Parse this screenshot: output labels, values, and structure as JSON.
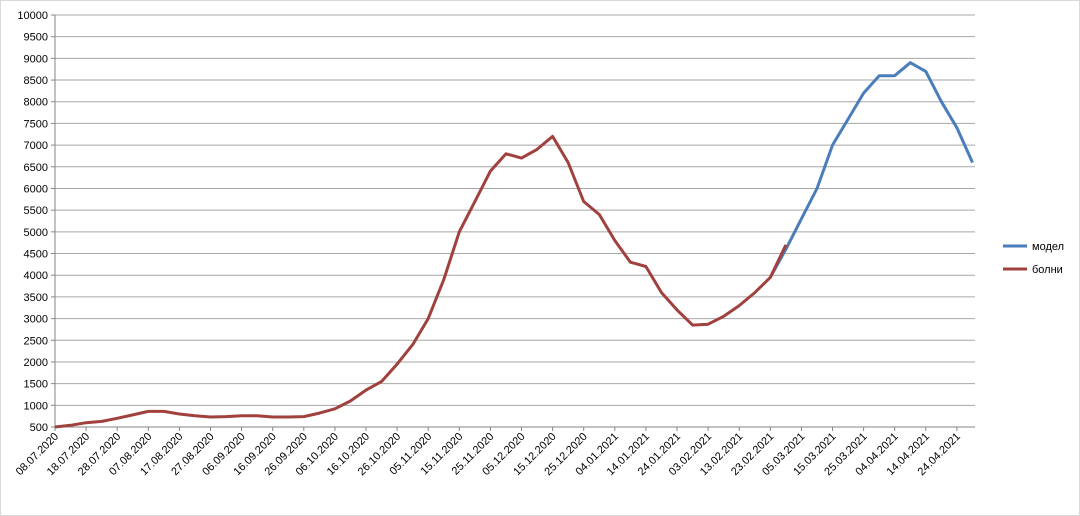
{
  "chart_data": {
    "type": "line",
    "categories": [
      "08.07.2020",
      null,
      "18.07.2020",
      null,
      "28.07.2020",
      null,
      "07.08.2020",
      null,
      "17.08.2020",
      null,
      "27.08.2020",
      null,
      "06.09.2020",
      null,
      "16.09.2020",
      null,
      "26.09.2020",
      null,
      "06.10.2020",
      null,
      "16.10.2020",
      null,
      "26.10.2020",
      null,
      "05.11.2020",
      null,
      "15.11.2020",
      null,
      "25.11.2020",
      null,
      "05.12.2020",
      null,
      "15.12.2020",
      null,
      "25.12.2020",
      null,
      "04.01.2021",
      null,
      "14.01.2021",
      null,
      "24.01.2021",
      null,
      "03.02.2021",
      null,
      "13.02.2021",
      null,
      "23.02.2021",
      null,
      "05.03.2021",
      null,
      "15.03.2021",
      null,
      "25.03.2021",
      null,
      "04.04.2021",
      null,
      "14.04.2021",
      null,
      "24.04.2021",
      null
    ],
    "series": [
      {
        "name": "модел",
        "color": "#4a7ebb",
        "values": [
          null,
          null,
          null,
          null,
          null,
          null,
          null,
          null,
          null,
          null,
          null,
          null,
          null,
          null,
          null,
          null,
          null,
          null,
          null,
          null,
          null,
          null,
          null,
          null,
          null,
          null,
          null,
          null,
          null,
          null,
          null,
          null,
          null,
          null,
          null,
          null,
          null,
          null,
          null,
          null,
          null,
          null,
          null,
          null,
          null,
          null,
          3950,
          4600,
          5300,
          6000,
          7000,
          7600,
          8200,
          8600,
          8600,
          8900,
          8700,
          8000,
          7400,
          6600
        ]
      },
      {
        "name": "болни",
        "color": "#a0413d",
        "values": [
          500,
          540,
          600,
          630,
          700,
          780,
          860,
          860,
          800,
          760,
          730,
          740,
          760,
          760,
          730,
          730,
          740,
          820,
          920,
          1100,
          1350,
          1550,
          1950,
          2400,
          3000,
          3900,
          5000,
          5700,
          6400,
          6800,
          6700,
          6900,
          7200,
          6600,
          5700,
          5400,
          4800,
          4300,
          4200,
          3600,
          3200,
          2850,
          2870,
          3050,
          3300,
          3600,
          3950,
          4700,
          null,
          null,
          null,
          null,
          null,
          null,
          null,
          null,
          null,
          null,
          null,
          null
        ]
      }
    ],
    "ylim": [
      500,
      10000
    ],
    "yticks": [
      500,
      1000,
      1500,
      2000,
      2500,
      3000,
      3500,
      4000,
      4500,
      5000,
      5500,
      6000,
      6500,
      7000,
      7500,
      8000,
      8500,
      9000,
      9500,
      10000
    ],
    "grid": true,
    "legend": "right"
  }
}
